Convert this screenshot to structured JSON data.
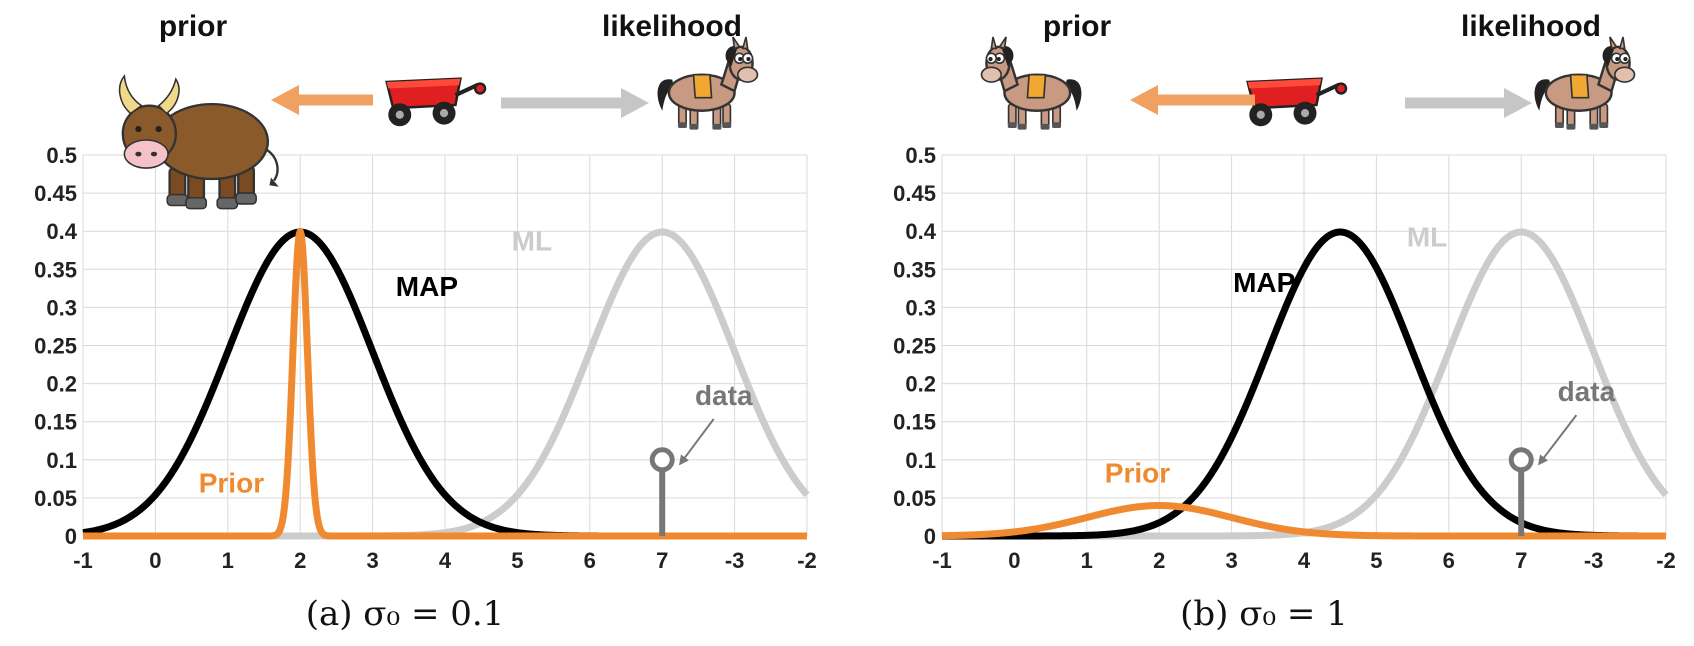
{
  "colors": {
    "map": "#000000",
    "prior": "#f08a30",
    "ml": "#cccccc",
    "data": "#777777",
    "grid": "#d9d9d9",
    "arrow_prior": "#f0a060",
    "arrow_likelihood": "#c6c6c6"
  },
  "chart_data": [
    {
      "type": "line",
      "caption": "(a) σ₀ = 0.1",
      "x_tick_labels": [
        "-1",
        "0",
        "1",
        "2",
        "3",
        "4",
        "5",
        "6",
        "7",
        "-3",
        "-2"
      ],
      "y_tick_labels": [
        "0",
        "0.05",
        "0.1",
        "0.15",
        "0.2",
        "0.25",
        "0.3",
        "0.35",
        "0.4",
        "0.45",
        "0.5"
      ],
      "xlim": [
        -1,
        9
      ],
      "ylim": [
        0,
        0.5
      ],
      "grid": true,
      "header": {
        "prior_label": "prior",
        "likelihood_label": "likelihood",
        "prior_icon": "bull-icon",
        "cart_icon": "wagon-icon",
        "likelihood_icon": "horse-icon"
      },
      "series": [
        {
          "name": "MAP",
          "color": "#000000",
          "mean": 2.0,
          "sd": 1.0,
          "label_x": 3.75,
          "label_y": 0.315
        },
        {
          "name": "ML",
          "color": "#cccccc",
          "mean": 7.0,
          "sd": 1.0,
          "label_x": 5.2,
          "label_y": 0.375
        },
        {
          "name": "Prior",
          "color": "#f08a30",
          "mean": 2.0,
          "sd": 0.1,
          "peak": 0.4,
          "label_x": 1.05,
          "label_y": 0.057
        }
      ],
      "data_point": {
        "label": "data",
        "x": 7.0,
        "y": 0.1,
        "label_x": 7.85,
        "label_y": 0.172
      }
    },
    {
      "type": "line",
      "caption": "(b) σ₀ = 1",
      "x_tick_labels": [
        "-1",
        "0",
        "1",
        "2",
        "3",
        "4",
        "5",
        "6",
        "7",
        "-3",
        "-2"
      ],
      "y_tick_labels": [
        "0",
        "0.05",
        "0.1",
        "0.15",
        "0.2",
        "0.25",
        "0.3",
        "0.35",
        "0.4",
        "0.45",
        "0.5"
      ],
      "xlim": [
        -1,
        9
      ],
      "ylim": [
        0,
        0.5
      ],
      "grid": true,
      "header": {
        "prior_label": "prior",
        "likelihood_label": "likelihood",
        "prior_icon": "horse-icon",
        "cart_icon": "wagon-icon",
        "likelihood_icon": "horse-icon"
      },
      "series": [
        {
          "name": "MAP",
          "color": "#000000",
          "mean": 4.5,
          "sd": 1.0,
          "label_x": 3.45,
          "label_y": 0.32
        },
        {
          "name": "ML",
          "color": "#cccccc",
          "mean": 7.0,
          "sd": 1.0,
          "label_x": 5.7,
          "label_y": 0.38
        },
        {
          "name": "Prior",
          "color": "#f08a30",
          "mean": 2.0,
          "sd": 1.0,
          "peak": 0.04,
          "label_x": 1.7,
          "label_y": 0.07
        }
      ],
      "data_point": {
        "label": "data",
        "x": 7.0,
        "y": 0.1,
        "label_x": 7.9,
        "label_y": 0.177
      }
    }
  ]
}
